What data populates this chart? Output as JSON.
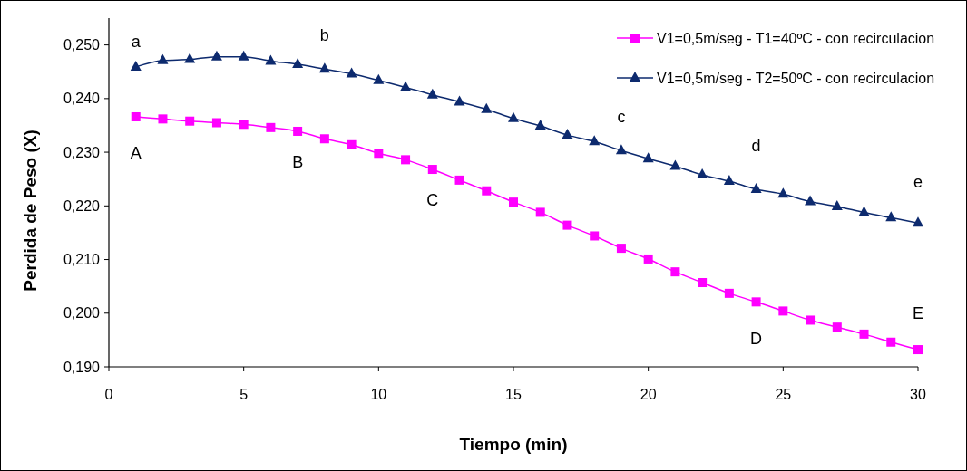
{
  "chart_data": {
    "type": "line",
    "xlabel": "Tiempo (min)",
    "ylabel": "Perdida de Peso (X)",
    "x": [
      1,
      2,
      3,
      4,
      5,
      6,
      7,
      8,
      9,
      10,
      11,
      12,
      13,
      14,
      15,
      16,
      17,
      18,
      19,
      20,
      21,
      22,
      23,
      24,
      25,
      26,
      27,
      28,
      29,
      30
    ],
    "series": [
      {
        "name": "V1=0,5m/seg - T1=40ºC - con recirculacion",
        "color": "#ff00ff",
        "marker": "square",
        "values": [
          0.2366,
          0.2362,
          0.2358,
          0.2355,
          0.2352,
          0.2346,
          0.2339,
          0.2325,
          0.2314,
          0.2298,
          0.2286,
          0.2268,
          0.2248,
          0.2228,
          0.2207,
          0.2188,
          0.2164,
          0.2144,
          0.2121,
          0.2101,
          0.2077,
          0.2057,
          0.2037,
          0.2021,
          0.2004,
          0.1987,
          0.1974,
          0.1961,
          0.1946,
          0.1932
        ]
      },
      {
        "name": "V1=0,5m/seg - T2=50ºC - con recirculacion",
        "color": "#0d2a6e",
        "marker": "triangle",
        "values": [
          0.2459,
          0.2471,
          0.2473,
          0.2478,
          0.2478,
          0.247,
          0.2464,
          0.2455,
          0.2446,
          0.2434,
          0.2421,
          0.2407,
          0.2394,
          0.238,
          0.2363,
          0.2349,
          0.2332,
          0.232,
          0.2303,
          0.2288,
          0.2274,
          0.2258,
          0.2246,
          0.2231,
          0.2222,
          0.2208,
          0.2199,
          0.2188,
          0.2178,
          0.2168
        ]
      }
    ],
    "xlim": [
      0,
      30
    ],
    "xticks": [
      0,
      5,
      10,
      15,
      20,
      25,
      30
    ],
    "ylim": [
      0.19,
      0.255
    ],
    "yticks": [
      {
        "value": 0.19,
        "label": "0,190"
      },
      {
        "value": 0.2,
        "label": "0,200"
      },
      {
        "value": 0.21,
        "label": "0,210"
      },
      {
        "value": 0.22,
        "label": "0,220"
      },
      {
        "value": 0.23,
        "label": "0,230"
      },
      {
        "value": 0.24,
        "label": "0,240"
      },
      {
        "value": 0.25,
        "label": "0,250"
      }
    ],
    "annotations": [
      "a",
      "b",
      "c",
      "d",
      "e",
      "A",
      "B",
      "C",
      "D",
      "E"
    ],
    "grid": false,
    "legend": "top right",
    "line_style": "solid"
  }
}
